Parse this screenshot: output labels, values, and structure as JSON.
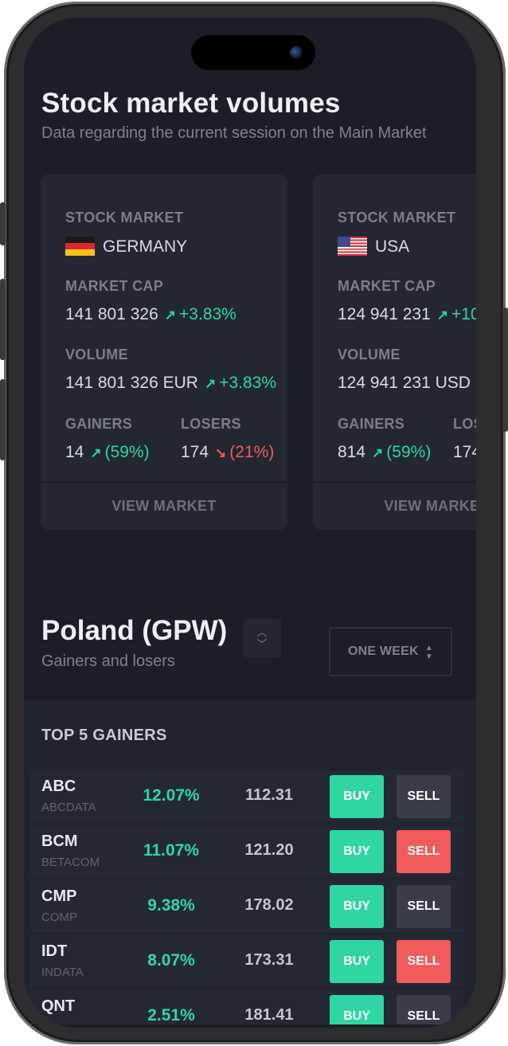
{
  "header": {
    "title": "Stock market volumes",
    "subtitle": "Data regarding the current session on the Main Market"
  },
  "cards": [
    {
      "stock_market_label": "STOCK MARKET",
      "country": "GERMANY",
      "flag_icon": "germany-flag-icon",
      "market_cap_label": "MARKET CAP",
      "market_cap_value": "141 801 326",
      "market_cap_change": "+3.83%",
      "volume_label": "VOLUME",
      "volume_value": "141 801 326 EUR",
      "volume_change": "+3.83%",
      "gainers_label": "GAINERS",
      "gainers_count": "14",
      "gainers_pct": "(59%)",
      "losers_label": "LOSERS",
      "losers_count": "174",
      "losers_pct": "(21%)",
      "view_label": "VIEW MARKET"
    },
    {
      "stock_market_label": "STOCK MARKET",
      "country": "USA",
      "flag_icon": "usa-flag-icon",
      "market_cap_label": "MARKET CAP",
      "market_cap_value": "124 941 231",
      "market_cap_change": "+10",
      "volume_label": "VOLUME",
      "volume_value": "124 941 231 USD",
      "gainers_label": "GAINERS",
      "gainers_count": "814",
      "gainers_pct": "(59%)",
      "losers_label": "LOS",
      "losers_count": "174",
      "view_label": "VIEW MARKET"
    }
  ],
  "poland": {
    "title": "Poland (GPW)",
    "subtitle": "Gainers and losers",
    "period": "ONE WEEK"
  },
  "gainers": {
    "title": "TOP 5 GAINERS",
    "buy_label": "BUY",
    "sell_label": "SELL",
    "rows": [
      {
        "symbol": "ABC",
        "name": "ABCDATA",
        "change": "12.07%",
        "price": "112.31",
        "sell_active": false
      },
      {
        "symbol": "BCM",
        "name": "BETACOM",
        "change": "11.07%",
        "price": "121.20",
        "sell_active": true
      },
      {
        "symbol": "CMP",
        "name": "COMP",
        "change": "9.38%",
        "price": "178.02",
        "sell_active": false
      },
      {
        "symbol": "IDT",
        "name": "INDATA",
        "change": "8.07%",
        "price": "173.31",
        "sell_active": true
      },
      {
        "symbol": "QNT",
        "name": "",
        "change": "2.51%",
        "price": "181.41",
        "sell_active": false
      }
    ]
  },
  "colors": {
    "background": "#1b1e26",
    "card": "#232732",
    "positive": "#2fd6a3",
    "negative": "#f25b5b",
    "sell_inactive": "#393d4a"
  }
}
